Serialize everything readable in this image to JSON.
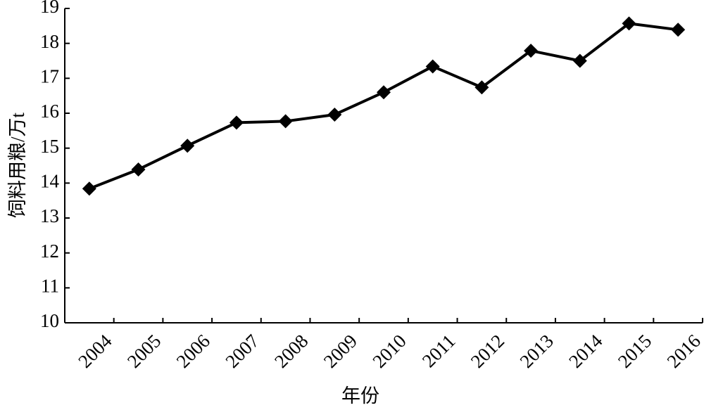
{
  "chart_data": {
    "type": "line",
    "y_label": "饲料用粮/万t",
    "x_label": "年份",
    "categories": [
      "2004",
      "2005",
      "2006",
      "2007",
      "2008",
      "2009",
      "2010",
      "2011",
      "2012",
      "2013",
      "2014",
      "2015",
      "2016"
    ],
    "values": [
      13.84,
      14.39,
      15.07,
      15.73,
      15.77,
      15.96,
      16.6,
      17.34,
      16.74,
      17.79,
      17.5,
      18.57,
      18.39
    ],
    "color": "#000000",
    "ylim": [
      10,
      19
    ],
    "yticks": [
      10,
      11,
      12,
      13,
      14,
      15,
      16,
      17,
      18,
      19
    ]
  }
}
